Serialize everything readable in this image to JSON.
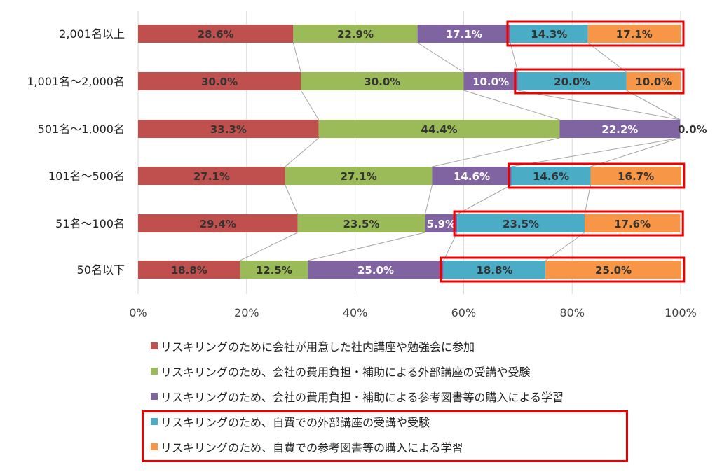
{
  "chart_data": {
    "type": "bar",
    "orientation": "horizontal",
    "stacked": "percent",
    "categories": [
      "2,001名以上",
      "1,001名～2,000名",
      "501名～1,000名",
      "101名～500名",
      "51名～100名",
      "50名以下"
    ],
    "series": [
      {
        "name": "リスキリングのために会社が用意した社内講座や勉強会に参加",
        "color": "#c0504d",
        "values": [
          28.6,
          30.0,
          33.3,
          27.1,
          29.4,
          18.8
        ],
        "labels": [
          "28.6%",
          "30.0%",
          "33.3%",
          "27.1%",
          "29.4%",
          "18.8%"
        ]
      },
      {
        "name": "リスキリングのため、会社の費用負担・補助による外部講座の受講や受験",
        "color": "#9bbb59",
        "values": [
          22.9,
          30.0,
          44.4,
          27.1,
          23.5,
          12.5
        ],
        "labels": [
          "22.9%",
          "30.0%",
          "44.4%",
          "27.1%",
          "23.5%",
          "12.5%"
        ]
      },
      {
        "name": "リスキリングのため、会社の費用負担・補助による参考図書等の購入による学習",
        "color": "#8064a2",
        "values": [
          17.1,
          10.0,
          22.2,
          14.6,
          5.9,
          25.0
        ],
        "labels": [
          "17.1%",
          "10.0%",
          "22.2%",
          "14.6%",
          "5.9%",
          "25.0%"
        ]
      },
      {
        "name": "リスキリングのため、自費での外部講座の受講や受験",
        "color": "#4bacc6",
        "values": [
          14.3,
          20.0,
          0.0,
          14.6,
          23.5,
          18.8
        ],
        "labels": [
          "14.3%",
          "20.0%",
          "0.0%",
          "14.6%",
          "23.5%",
          "18.8%"
        ]
      },
      {
        "name": "リスキリングのため、自費での参考図書等の購入による学習",
        "color": "#f79646",
        "values": [
          17.1,
          10.0,
          0.0,
          16.7,
          17.6,
          25.0
        ],
        "labels": [
          "17.1%",
          "10.0%",
          "",
          "16.7%",
          "17.6%",
          "25.0%"
        ]
      }
    ],
    "x_ticks": [
      "0%",
      "20%",
      "40%",
      "60%",
      "80%",
      "100%"
    ],
    "xlim": [
      0,
      100
    ],
    "grid": "vertical",
    "series_lines": true,
    "highlighted_series": [
      3,
      4
    ],
    "highlight_color": "#ee0000",
    "legend_position": "bottom"
  }
}
